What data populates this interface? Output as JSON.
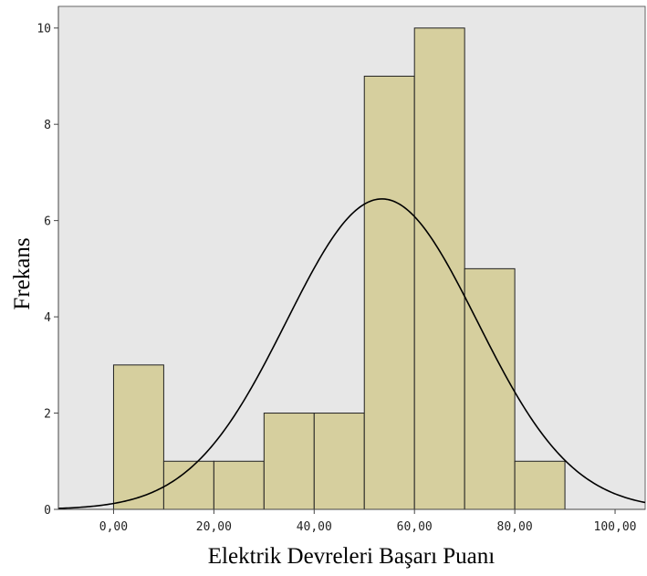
{
  "chart_data": {
    "type": "bar",
    "subtype": "histogram",
    "title": "",
    "xlabel": "Elektrik Devreleri Başarı Puanı",
    "ylabel": "Frekans",
    "bins": [
      {
        "start": 0,
        "end": 10,
        "count": 3
      },
      {
        "start": 10,
        "end": 20,
        "count": 1
      },
      {
        "start": 20,
        "end": 30,
        "count": 1
      },
      {
        "start": 30,
        "end": 40,
        "count": 2
      },
      {
        "start": 40,
        "end": 50,
        "count": 2
      },
      {
        "start": 50,
        "end": 60,
        "count": 9
      },
      {
        "start": 60,
        "end": 70,
        "count": 10
      },
      {
        "start": 70,
        "end": 80,
        "count": 5
      },
      {
        "start": 80,
        "end": 90,
        "count": 1
      }
    ],
    "x_ticks": [
      {
        "value": 0,
        "label": "0,00"
      },
      {
        "value": 20,
        "label": "20,00"
      },
      {
        "value": 40,
        "label": "40,00"
      },
      {
        "value": 60,
        "label": "60,00"
      },
      {
        "value": 80,
        "label": "80,00"
      },
      {
        "value": 100,
        "label": "100,00"
      }
    ],
    "y_ticks": [
      {
        "value": 0,
        "label": "0"
      },
      {
        "value": 2,
        "label": "2"
      },
      {
        "value": 4,
        "label": "4"
      },
      {
        "value": 6,
        "label": "6"
      },
      {
        "value": 8,
        "label": "8"
      },
      {
        "value": 10,
        "label": "10"
      }
    ],
    "xlim": [
      -11,
      106
    ],
    "ylim": [
      0,
      10.45
    ],
    "normal_curve": {
      "mean": 53.5,
      "peak": 6.45,
      "sd": 19
    },
    "grid": false,
    "legend": "none",
    "colors": {
      "bar_fill": "#D6CF9E",
      "bar_stroke": "#222222",
      "plot_background": "#E7E7E7",
      "curve": "#000000"
    }
  }
}
